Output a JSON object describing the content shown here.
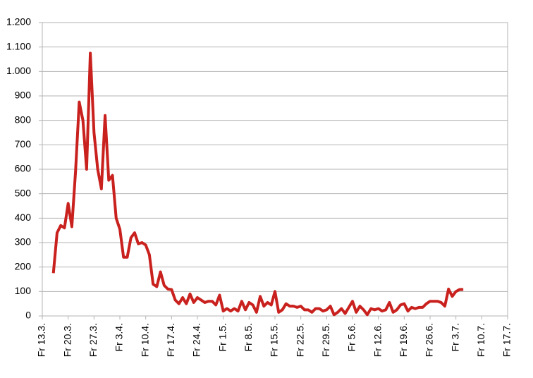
{
  "chart_data": {
    "type": "line",
    "categories": [
      "Fr 13.3.",
      null,
      null,
      null,
      null,
      null,
      null,
      "Fr 20.3.",
      null,
      null,
      null,
      null,
      null,
      null,
      "Fr 27.3.",
      null,
      null,
      null,
      null,
      null,
      null,
      "Fr 3.4.",
      null,
      null,
      null,
      null,
      null,
      null,
      "Fr 10.4.",
      null,
      null,
      null,
      null,
      null,
      null,
      "Fr 17.4.",
      null,
      null,
      null,
      null,
      null,
      null,
      "Fr 24.4.",
      null,
      null,
      null,
      null,
      null,
      null,
      "Fr 1.5.",
      null,
      null,
      null,
      null,
      null,
      null,
      "Fr 8.5.",
      null,
      null,
      null,
      null,
      null,
      null,
      "Fr 15.5.",
      null,
      null,
      null,
      null,
      null,
      null,
      "Fr 22.5.",
      null,
      null,
      null,
      null,
      null,
      null,
      "Fr 29.5.",
      null,
      null,
      null,
      null,
      null,
      null,
      "Fr 5.6.",
      null,
      null,
      null,
      null,
      null,
      null,
      "Fr 12.6.",
      null,
      null,
      null,
      null,
      null,
      null,
      "Fr 19.6.",
      null,
      null,
      null,
      null,
      null,
      null,
      "Fr 26.6.",
      null,
      null,
      null,
      null,
      null,
      null,
      "Fr 3.7.",
      null,
      null,
      null,
      null,
      null,
      null,
      "Fr 10.7.",
      null,
      null,
      null,
      null,
      null,
      null,
      "Fr 17.7."
    ],
    "values": [
      null,
      null,
      null,
      175,
      340,
      370,
      360,
      460,
      365,
      590,
      875,
      800,
      600,
      1075,
      750,
      600,
      520,
      820,
      555,
      575,
      400,
      355,
      240,
      240,
      320,
      340,
      295,
      300,
      290,
      250,
      130,
      120,
      180,
      125,
      110,
      108,
      65,
      50,
      75,
      50,
      90,
      55,
      75,
      65,
      55,
      60,
      60,
      45,
      85,
      20,
      30,
      20,
      30,
      20,
      60,
      25,
      55,
      45,
      15,
      80,
      40,
      55,
      45,
      100,
      15,
      25,
      50,
      40,
      40,
      35,
      40,
      25,
      25,
      15,
      30,
      30,
      20,
      25,
      40,
      5,
      15,
      30,
      10,
      35,
      60,
      15,
      40,
      25,
      5,
      30,
      25,
      30,
      20,
      25,
      55,
      15,
      25,
      45,
      50,
      20,
      35,
      30,
      35,
      35,
      50,
      60,
      60,
      60,
      55,
      40,
      110,
      80,
      100,
      108,
      108,
      null,
      null,
      null,
      null,
      null,
      null,
      null,
      null,
      null,
      null,
      null,
      null
    ],
    "color": "#c9211e",
    "ylim": [
      0,
      1200
    ],
    "yticks": [
      0,
      100,
      200,
      300,
      400,
      500,
      600,
      700,
      800,
      900,
      {
        "value": 1000,
        "label": "1.000"
      },
      {
        "value": 1100,
        "label": "1.100"
      },
      {
        "value": 1200,
        "label": "1.200"
      }
    ],
    "grid": true
  }
}
